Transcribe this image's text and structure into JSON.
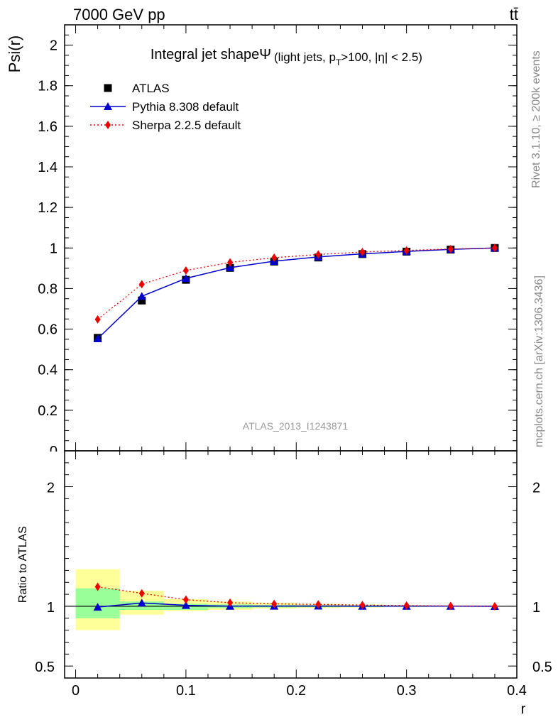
{
  "header": {
    "energy_label": "7000 GeV pp",
    "process_label": "tt̄"
  },
  "side_text": {
    "rivet": "Rivet 3.1.10, ≥ 200k events",
    "mcplots": "mcplots.cern.ch [arXiv:1306.3436]"
  },
  "chart_data": [
    {
      "type": "line",
      "title": "Integral jet shapeΨ",
      "subtitle": "(light jets, p",
      "subtitle_sub": "T",
      "subtitle_tail": ">100, |η| < 2.5)",
      "ylabel": "Psi(r)",
      "analysis_tag": "ATLAS_2013_I1243871",
      "xlim": [
        -0.01,
        0.4
      ],
      "ylim": [
        0,
        2.1
      ],
      "yticks": [
        0,
        0.2,
        0.4,
        0.6,
        0.8,
        1,
        1.2,
        1.4,
        1.6,
        1.8,
        2
      ],
      "ytick_labels": [
        "0",
        "0.2",
        "0.4",
        "0.6",
        "0.8",
        "1",
        "1.2",
        "1.4",
        "1.6",
        "1.8",
        "2"
      ],
      "x": [
        0.02,
        0.06,
        0.1,
        0.14,
        0.18,
        0.22,
        0.26,
        0.3,
        0.34,
        0.38
      ],
      "x_bin_edges": [
        0.0,
        0.04,
        0.08,
        0.12,
        0.16,
        0.2,
        0.24,
        0.28,
        0.32,
        0.36,
        0.4
      ],
      "series": [
        {
          "name": "ATLAS",
          "color": "#000000",
          "marker": "square",
          "values": [
            0.557,
            0.741,
            0.843,
            0.902,
            0.933,
            0.953,
            0.97,
            0.982,
            0.992,
            1.0
          ]
        },
        {
          "name": "Pythia 8.308 default",
          "color": "#0000cc",
          "marker": "triangle",
          "values": [
            0.553,
            0.762,
            0.85,
            0.903,
            0.935,
            0.956,
            0.971,
            0.983,
            0.993,
            1.0
          ]
        },
        {
          "name": "Sherpa 2.2.5 default",
          "color": "#ee0000",
          "marker": "diamond",
          "values": [
            0.648,
            0.821,
            0.889,
            0.929,
            0.952,
            0.968,
            0.98,
            0.988,
            0.995,
            1.0
          ]
        }
      ],
      "legend_position": "top-left"
    },
    {
      "type": "line",
      "ylabel": "Ratio to ATLAS",
      "xlabel": "r",
      "xlim": [
        -0.01,
        0.4
      ],
      "ylim": [
        0.4,
        2.3
      ],
      "yticks": [
        0.5,
        1,
        2
      ],
      "ytick_labels": [
        "0.5",
        "1",
        "2"
      ],
      "xticks": [
        0,
        0.1,
        0.2,
        0.3,
        0.4
      ],
      "xtick_labels": [
        "0",
        "0.1",
        "0.2",
        "0.3",
        "0.4"
      ],
      "x": [
        0.02,
        0.06,
        0.1,
        0.14,
        0.18,
        0.22,
        0.26,
        0.3,
        0.34,
        0.38
      ],
      "band_green": [
        [
          0.9,
          1.15
        ],
        [
          0.97,
          1.04
        ],
        [
          0.97,
          1.02
        ],
        [
          0.985,
          1.015
        ],
        [
          0.99,
          1.01
        ],
        [
          0.992,
          1.008
        ],
        [
          0.994,
          1.006
        ],
        [
          0.996,
          1.004
        ],
        [
          0.997,
          1.003
        ],
        [
          0.999,
          1.001
        ]
      ],
      "band_yellow": [
        [
          0.8,
          1.31
        ],
        [
          0.93,
          1.13
        ],
        [
          0.96,
          1.06
        ],
        [
          0.97,
          1.04
        ],
        [
          0.98,
          1.03
        ],
        [
          0.985,
          1.02
        ],
        [
          0.99,
          1.015
        ],
        [
          0.995,
          1.008
        ],
        [
          0.996,
          1.005
        ],
        [
          0.999,
          1.001
        ]
      ],
      "series": [
        {
          "name": "Pythia 8.308 default",
          "color": "#0000cc",
          "marker": "triangle",
          "values": [
            0.993,
            1.028,
            1.008,
            1.001,
            1.002,
            1.003,
            1.001,
            1.001,
            1.001,
            1.0
          ]
        },
        {
          "name": "Sherpa 2.2.5 default",
          "color": "#ee0000",
          "marker": "diamond",
          "values": [
            1.163,
            1.108,
            1.055,
            1.03,
            1.02,
            1.016,
            1.01,
            1.006,
            1.003,
            1.0
          ]
        }
      ],
      "colors": {
        "green_band": "#99ff99",
        "yellow_band": "#ffff99"
      }
    }
  ]
}
